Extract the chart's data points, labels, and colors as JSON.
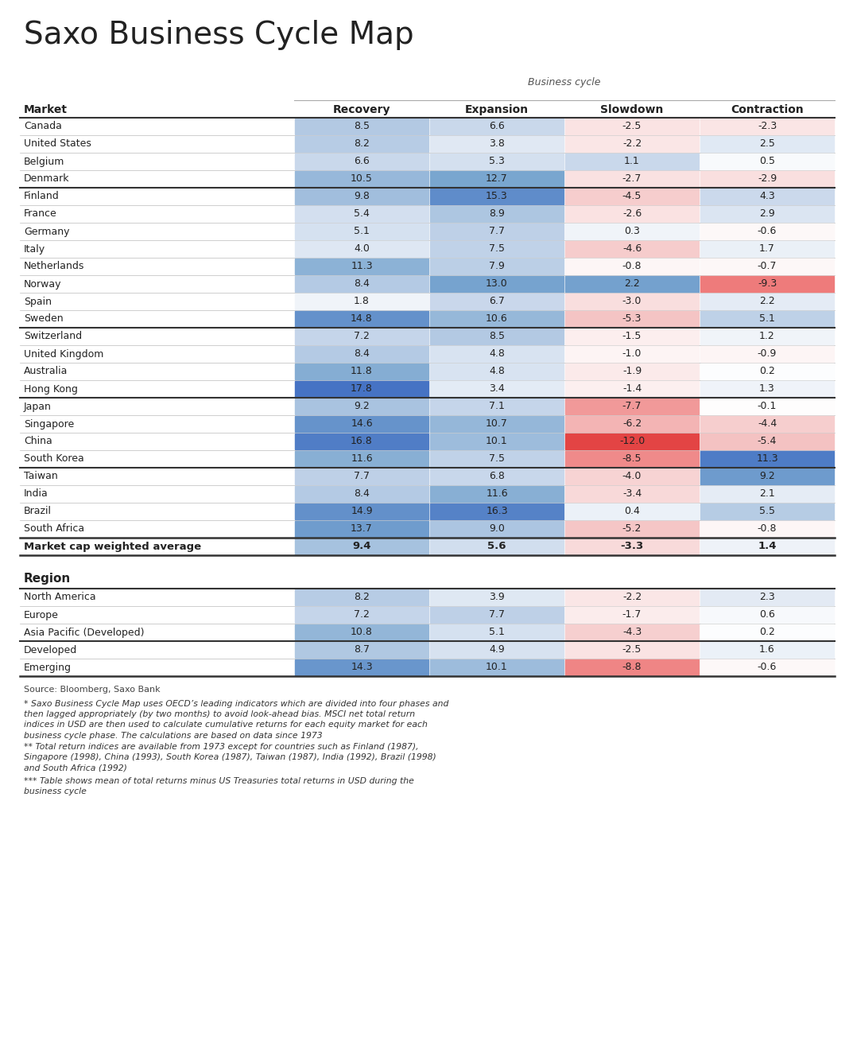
{
  "title": "Saxo Business Cycle Map",
  "business_cycle_label": "Business cycle",
  "columns": [
    "Recovery",
    "Expansion",
    "Slowdown",
    "Contraction"
  ],
  "market_header": "Market",
  "markets": [
    {
      "name": "Canada",
      "values": [
        8.5,
        6.6,
        -2.5,
        -2.3
      ],
      "group": 1
    },
    {
      "name": "United States",
      "values": [
        8.2,
        3.8,
        -2.2,
        2.5
      ],
      "group": 1
    },
    {
      "name": "Belgium",
      "values": [
        6.6,
        5.3,
        1.1,
        0.5
      ],
      "group": 1
    },
    {
      "name": "Denmark",
      "values": [
        10.5,
        12.7,
        -2.7,
        -2.9
      ],
      "group": 1
    },
    {
      "name": "Finland",
      "values": [
        9.8,
        15.3,
        -4.5,
        4.3
      ],
      "group": 2
    },
    {
      "name": "France",
      "values": [
        5.4,
        8.9,
        -2.6,
        2.9
      ],
      "group": 2
    },
    {
      "name": "Germany",
      "values": [
        5.1,
        7.7,
        0.3,
        -0.6
      ],
      "group": 2
    },
    {
      "name": "Italy",
      "values": [
        4.0,
        7.5,
        -4.6,
        1.7
      ],
      "group": 2
    },
    {
      "name": "Netherlands",
      "values": [
        11.3,
        7.9,
        -0.8,
        -0.7
      ],
      "group": 2
    },
    {
      "name": "Norway",
      "values": [
        8.4,
        13.0,
        2.2,
        -9.3
      ],
      "group": 2
    },
    {
      "name": "Spain",
      "values": [
        1.8,
        6.7,
        -3.0,
        2.2
      ],
      "group": 2
    },
    {
      "name": "Sweden",
      "values": [
        14.8,
        10.6,
        -5.3,
        5.1
      ],
      "group": 2
    },
    {
      "name": "Switzerland",
      "values": [
        7.2,
        8.5,
        -1.5,
        1.2
      ],
      "group": 3
    },
    {
      "name": "United Kingdom",
      "values": [
        8.4,
        4.8,
        -1.0,
        -0.9
      ],
      "group": 3
    },
    {
      "name": "Australia",
      "values": [
        11.8,
        4.8,
        -1.9,
        0.2
      ],
      "group": 3
    },
    {
      "name": "Hong Kong",
      "values": [
        17.8,
        3.4,
        -1.4,
        1.3
      ],
      "group": 3
    },
    {
      "name": "Japan",
      "values": [
        9.2,
        7.1,
        -7.7,
        -0.1
      ],
      "group": 4
    },
    {
      "name": "Singapore",
      "values": [
        14.6,
        10.7,
        -6.2,
        -4.4
      ],
      "group": 4
    },
    {
      "name": "China",
      "values": [
        16.8,
        10.1,
        -12.0,
        -5.4
      ],
      "group": 4
    },
    {
      "name": "South Korea",
      "values": [
        11.6,
        7.5,
        -8.5,
        11.3
      ],
      "group": 4
    },
    {
      "name": "Taiwan",
      "values": [
        7.7,
        6.8,
        -4.0,
        9.2
      ],
      "group": 5
    },
    {
      "name": "India",
      "values": [
        8.4,
        11.6,
        -3.4,
        2.1
      ],
      "group": 5
    },
    {
      "name": "Brazil",
      "values": [
        14.9,
        16.3,
        0.4,
        5.5
      ],
      "group": 5
    },
    {
      "name": "South Africa",
      "values": [
        13.7,
        9.0,
        -5.2,
        -0.8
      ],
      "group": 5
    }
  ],
  "weighted_avg": {
    "name": "Market cap weighted average",
    "values": [
      9.4,
      5.6,
      -3.3,
      1.4
    ]
  },
  "region_header": "Region",
  "regions": [
    {
      "name": "North America",
      "values": [
        8.2,
        3.9,
        -2.2,
        2.3
      ],
      "group": 6
    },
    {
      "name": "Europe",
      "values": [
        7.2,
        7.7,
        -1.7,
        0.6
      ],
      "group": 6
    },
    {
      "name": "Asia Pacific (Developed)",
      "values": [
        10.8,
        5.1,
        -4.3,
        0.2
      ],
      "group": 6
    },
    {
      "name": "Developed",
      "values": [
        8.7,
        4.9,
        -2.5,
        1.6
      ],
      "group": 7
    },
    {
      "name": "Emerging",
      "values": [
        14.3,
        10.1,
        -8.8,
        -0.6
      ],
      "group": 7
    }
  ],
  "thick_after_market_rows": [
    3,
    11,
    15,
    19
  ],
  "thick_after_region_rows": [
    2
  ],
  "source_text": "Source: Bloomberg, Saxo Bank",
  "footnotes": [
    "* Saxo Business Cycle Map uses OECD’s leading indicators which are divided into four phases and then lagged appropriately (by two months) to avoid look-ahead bias. MSCI net total return indices in USD are then used to calculate cumulative returns for each equity market for each business cycle phase. The calculations are based on data since 1973",
    "** Total return indices are available from 1973 except for countries such as Finland (1987), Singapore (1998), China (1993), South Korea (1987), Taiwan (1987), India (1992), Brazil (1998) and South Africa (1992)",
    "*** Table shows mean of total returns minus US Treasuries total returns in USD during the business cycle"
  ],
  "bg_color": "#ffffff",
  "text_color": "#222222",
  "line_color_thick": "#333333",
  "line_color_thin": "#bbbbbb"
}
